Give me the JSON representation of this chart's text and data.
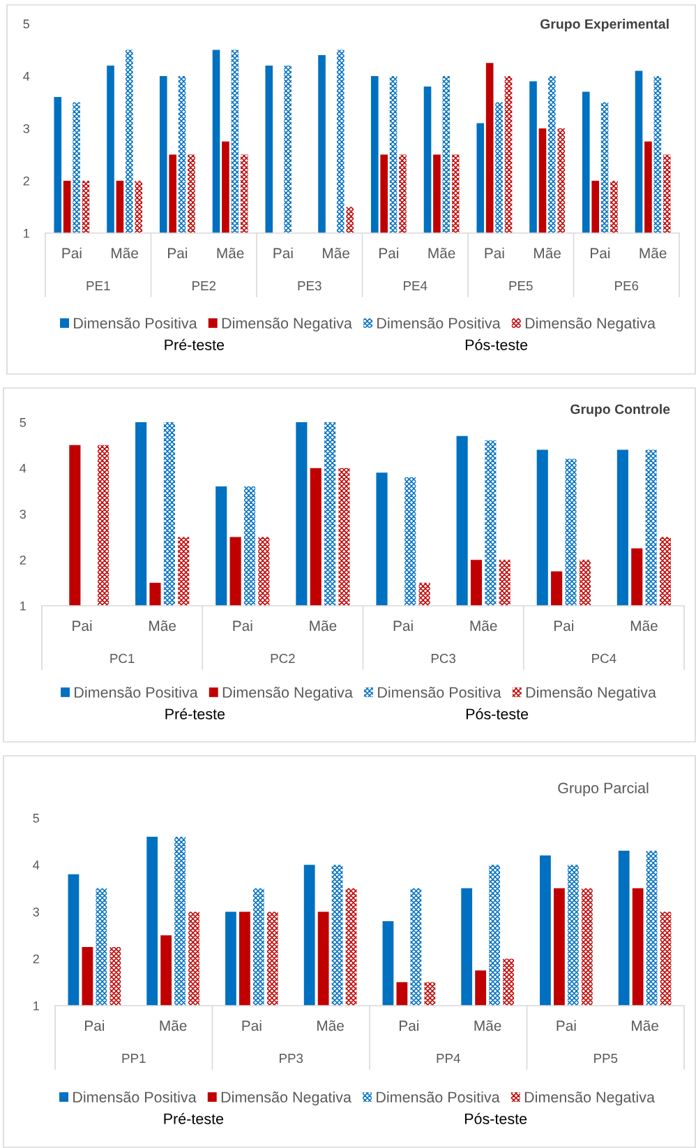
{
  "chart_data": [
    {
      "type": "bar",
      "title": "Grupo Experimental",
      "categories": [
        "Pai",
        "Mãe",
        "Pai",
        "Mãe",
        "Pai",
        "Mãe",
        "Pai",
        "Mãe",
        "Pai",
        "Mãe",
        "Pai",
        "Mãe"
      ],
      "series": [
        {
          "name": "Dimensão Positiva",
          "color": "#0070c0",
          "values": [
            3.6,
            4.2,
            4.0,
            4.5,
            4.2,
            4.4,
            4.0,
            3.8,
            3.1,
            3.9,
            3.7,
            4.1
          ]
        },
        {
          "name": "Dimensão Negativa",
          "color": "#c00000",
          "values": [
            2.0,
            2.0,
            2.5,
            2.75,
            null,
            null,
            2.5,
            2.5,
            4.25,
            3.0,
            2.0,
            2.75
          ]
        },
        {
          "name": "Dimensão Positiva",
          "color": "#0070c0",
          "values": [
            3.5,
            4.5,
            4.0,
            4.5,
            4.2,
            4.5,
            4.0,
            4.0,
            3.5,
            4.0,
            3.5,
            4.0
          ]
        },
        {
          "name": "Dimensão Negativa",
          "color": "#c00000",
          "values": [
            2.0,
            2.0,
            2.5,
            2.5,
            null,
            1.5,
            2.5,
            2.5,
            4.0,
            3.0,
            2.0,
            2.5
          ]
        }
      ],
      "ylim": [
        1,
        5
      ],
      "yticks": [
        1,
        2,
        3,
        4,
        5
      ],
      "legend": "bottom",
      "annotations": [
        "PE1",
        "PE2",
        "PE3",
        "PE4",
        "PE5",
        "PE6",
        "Pré-teste",
        "Pós-teste"
      ]
    },
    {
      "type": "bar",
      "title": "Grupo Controle",
      "categories": [
        "Pai",
        "Mãe",
        "Pai",
        "Mãe",
        "Pai",
        "Mãe",
        "Pai",
        "Mãe"
      ],
      "series": [
        {
          "name": "Dimensão Positiva",
          "color": "#0070c0",
          "values": [
            null,
            5.0,
            3.6,
            5.0,
            3.9,
            4.7,
            4.4,
            4.4
          ]
        },
        {
          "name": "Dimensão Negativa",
          "color": "#c00000",
          "values": [
            4.5,
            1.5,
            2.5,
            4.0,
            null,
            2.0,
            1.75,
            2.25
          ]
        },
        {
          "name": "Dimensão Positiva",
          "color": "#0070c0",
          "values": [
            null,
            5.0,
            3.6,
            5.0,
            3.8,
            4.6,
            4.2,
            4.4
          ]
        },
        {
          "name": "Dimensão Negativa",
          "color": "#c00000",
          "values": [
            4.5,
            2.5,
            2.5,
            4.0,
            1.5,
            2.0,
            2.0,
            2.5
          ]
        }
      ],
      "ylim": [
        1,
        5
      ],
      "yticks": [
        1,
        2,
        3,
        4,
        5
      ],
      "legend": "bottom",
      "annotations": [
        "PC1",
        "PC2",
        "PC3",
        "PC4",
        "Pré-teste",
        "Pós-teste"
      ]
    },
    {
      "type": "bar",
      "title": "Grupo Parcial",
      "categories": [
        "Pai",
        "Mãe",
        "Pai",
        "Mãe",
        "Pai",
        "Mãe",
        "Pai",
        "Mãe"
      ],
      "series": [
        {
          "name": "Dimensão Positiva",
          "color": "#0070c0",
          "values": [
            3.8,
            4.6,
            3.0,
            4.0,
            2.8,
            3.5,
            4.2,
            4.3
          ]
        },
        {
          "name": "Dimensão Negativa",
          "color": "#c00000",
          "values": [
            2.25,
            2.5,
            3.0,
            3.0,
            1.5,
            1.75,
            3.5,
            3.5
          ]
        },
        {
          "name": "Dimensão Positiva",
          "color": "#0070c0",
          "values": [
            3.5,
            4.6,
            3.5,
            4.0,
            3.5,
            4.0,
            4.0,
            4.3
          ]
        },
        {
          "name": "Dimensão Negativa",
          "color": "#c00000",
          "values": [
            2.25,
            3.0,
            3.0,
            3.5,
            1.5,
            2.0,
            3.5,
            3.0
          ]
        }
      ],
      "ylim": [
        1,
        5
      ],
      "yticks": [
        1,
        2,
        3,
        4,
        5
      ],
      "legend": "bottom",
      "annotations": [
        "PP1",
        "PP3",
        "PP4",
        "PP5",
        "Pré-teste",
        "Pós-teste"
      ]
    }
  ]
}
